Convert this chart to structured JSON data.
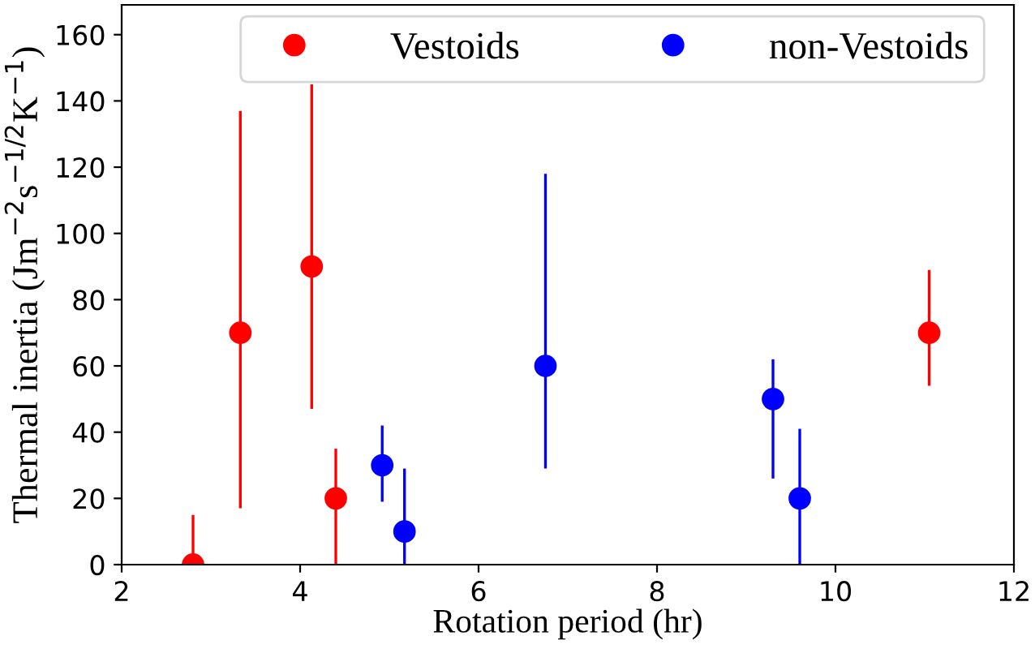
{
  "chart_data": {
    "type": "scatter",
    "xlabel": "Rotation period (hr)",
    "ylabel": "Thermal inertia (Jm$^{−2}$s$^{−1/2}$K$^{−1}$)",
    "xlim": [
      2,
      12
    ],
    "xticks": [
      2,
      4,
      6,
      8,
      10,
      12
    ],
    "ylim": [
      0,
      169
    ],
    "yticks": [
      0,
      20,
      40,
      60,
      80,
      100,
      120,
      140,
      160
    ],
    "legend": "top",
    "marker": "circle",
    "grid": false,
    "series": [
      {
        "name": "Vestoids",
        "color": "#ff0000",
        "x": [
          2.8,
          3.33,
          4.13,
          4.4,
          11.05
        ],
        "values": [
          0,
          70,
          90,
          20,
          70
        ],
        "errors": [
          [
            0,
            15
          ],
          [
            17,
            137
          ],
          [
            47,
            145
          ],
          [
            0,
            35
          ],
          [
            54,
            89
          ]
        ]
      },
      {
        "name": "non-Vestoids",
        "color": "#0000ff",
        "x": [
          4.92,
          5.17,
          6.75,
          9.3,
          9.6
        ],
        "values": [
          30,
          10,
          60,
          50,
          20
        ],
        "errors": [
          [
            19,
            42
          ],
          [
            0,
            29
          ],
          [
            29,
            118
          ],
          [
            26,
            62
          ],
          [
            0,
            41
          ]
        ]
      }
    ]
  }
}
